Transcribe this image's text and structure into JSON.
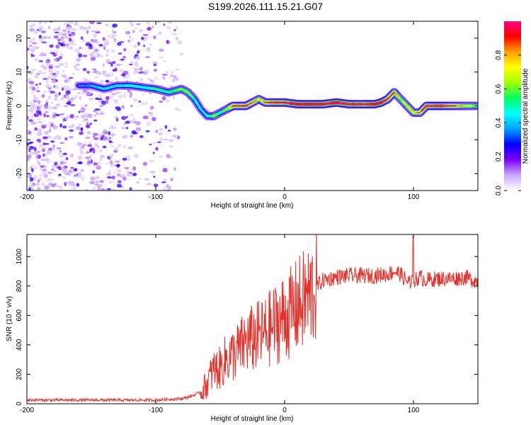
{
  "title": "S199.2026.111.15.21.G07",
  "chart_data": [
    {
      "type": "heatmap",
      "name": "spectrogram",
      "xlabel": "Height of straight line (km)",
      "ylabel": "Frequency (Hz)",
      "xlim": [
        -200,
        150
      ],
      "ylim": [
        -25,
        25
      ],
      "xticks": [
        -200,
        -100,
        0,
        100
      ],
      "yticks": [
        20,
        10,
        0,
        -10,
        -20
      ],
      "colorbar": {
        "label": "Normalized spectral amplitude",
        "range": [
          0,
          1
        ],
        "ticks": [
          0.0,
          0.2,
          0.4,
          0.6,
          0.8
        ],
        "colors": [
          "#ffffff",
          "#c9a7ff",
          "#7f00ff",
          "#0000ff",
          "#00a0ff",
          "#00ffff",
          "#00ff60",
          "#a0ff00",
          "#ffff00",
          "#ffa000",
          "#ff0000",
          "#ff0080"
        ]
      },
      "ridge": {
        "x": [
          -160,
          -150,
          -140,
          -130,
          -120,
          -110,
          -100,
          -90,
          -80,
          -75,
          -70,
          -65,
          -60,
          -55,
          -50,
          -45,
          -40,
          -30,
          -20,
          -15,
          -10,
          0,
          10,
          20,
          30,
          40,
          50,
          60,
          70,
          75,
          80,
          85,
          90,
          95,
          100,
          105,
          110,
          120,
          130,
          140,
          150
        ],
        "y": [
          6,
          6,
          5,
          6,
          6,
          5.5,
          5,
          4,
          5,
          4,
          2,
          -1,
          -3,
          -3,
          -2,
          -1,
          0,
          0,
          2,
          1,
          1,
          1,
          0.5,
          0.5,
          0.5,
          1,
          0.5,
          0.5,
          0.5,
          1,
          2,
          4,
          2,
          0,
          -2,
          -2,
          0,
          0,
          0,
          0,
          0
        ],
        "amplitude": [
          0.2,
          0.25,
          0.3,
          0.3,
          0.35,
          0.35,
          0.4,
          0.4,
          0.5,
          0.5,
          0.4,
          0.3,
          0.35,
          0.5,
          0.4,
          0.5,
          0.75,
          0.8,
          0.6,
          0.7,
          0.8,
          0.85,
          0.95,
          0.95,
          0.9,
          0.95,
          0.9,
          0.85,
          0.95,
          0.95,
          0.8,
          0.7,
          0.5,
          0.6,
          0.6,
          0.7,
          0.85,
          0.9,
          0.75,
          0.6,
          0.5
        ]
      },
      "noise_region_x": [
        -200,
        -80
      ]
    },
    {
      "type": "line",
      "name": "snr",
      "xlabel": "Height of straight line (km)",
      "ylabel": "SNR (10 * v/v)",
      "xlim": [
        -200,
        150
      ],
      "ylim": [
        0,
        1150
      ],
      "xticks": [
        -200,
        -100,
        0,
        100
      ],
      "yticks": [
        0,
        200,
        400,
        600,
        800,
        1000
      ],
      "color": "#e8302a",
      "series": [
        {
          "name": "SNR",
          "x": [
            -200,
            -180,
            -160,
            -140,
            -120,
            -100,
            -90,
            -80,
            -75,
            -70,
            -65,
            -60,
            -57,
            -55,
            -50,
            -45,
            -40,
            -35,
            -30,
            -25,
            -20,
            -15,
            -10,
            -5,
            0,
            5,
            10,
            15,
            20,
            25,
            30,
            40,
            50,
            60,
            70,
            80,
            85,
            90,
            95,
            100,
            105,
            110,
            120,
            130,
            140,
            150
          ],
          "y": [
            25,
            25,
            25,
            25,
            25,
            25,
            30,
            35,
            45,
            60,
            80,
            140,
            200,
            230,
            240,
            310,
            330,
            370,
            420,
            440,
            460,
            480,
            520,
            560,
            590,
            620,
            660,
            700,
            740,
            800,
            840,
            860,
            870,
            870,
            870,
            880,
            900,
            880,
            830,
            840,
            860,
            840,
            850,
            850,
            860,
            830
          ]
        }
      ]
    }
  ]
}
